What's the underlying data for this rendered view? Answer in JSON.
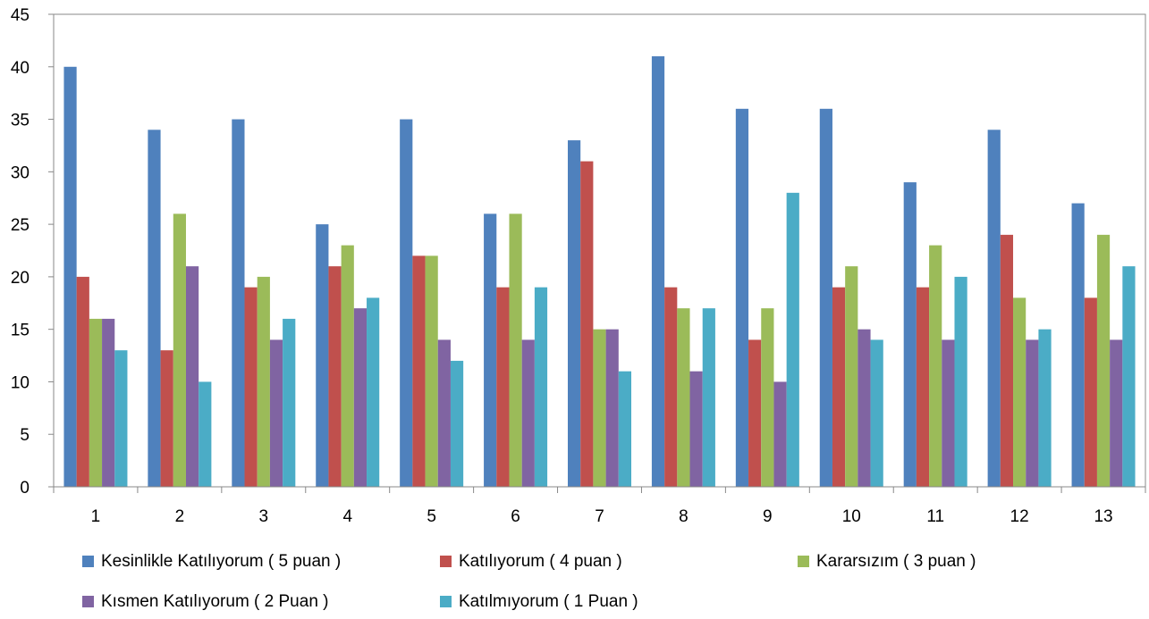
{
  "chart_data": {
    "type": "bar",
    "title": "",
    "xlabel": "",
    "ylabel": "",
    "categories": [
      "1",
      "2",
      "3",
      "4",
      "5",
      "6",
      "7",
      "8",
      "9",
      "10",
      "11",
      "12",
      "13"
    ],
    "ylim": [
      0,
      45
    ],
    "yticks": [
      0,
      5,
      10,
      15,
      20,
      25,
      30,
      35,
      40,
      45
    ],
    "grid": false,
    "legend_position": "bottom",
    "series": [
      {
        "name": "Kesinlikle Katılıyorum ( 5 puan )",
        "color": "#4F81BD",
        "values": [
          40,
          34,
          35,
          25,
          35,
          26,
          33,
          41,
          36,
          36,
          29,
          34,
          27
        ]
      },
      {
        "name": "Katılıyorum ( 4 puan )",
        "color": "#C0504D",
        "values": [
          20,
          13,
          19,
          21,
          22,
          19,
          31,
          19,
          14,
          19,
          19,
          24,
          18
        ]
      },
      {
        "name": "Kararsızım ( 3 puan )",
        "color": "#9BBB59",
        "values": [
          16,
          26,
          20,
          23,
          22,
          26,
          15,
          17,
          17,
          21,
          23,
          18,
          24
        ]
      },
      {
        "name": "Kısmen Katılıyorum ( 2 Puan )",
        "color": "#8064A2",
        "values": [
          16,
          21,
          14,
          17,
          14,
          14,
          15,
          11,
          10,
          15,
          14,
          14,
          14
        ]
      },
      {
        "name": "Katılmıyorum ( 1 Puan )",
        "color": "#4BACC6",
        "values": [
          13,
          10,
          16,
          18,
          12,
          19,
          11,
          17,
          28,
          14,
          20,
          15,
          21
        ]
      }
    ]
  }
}
